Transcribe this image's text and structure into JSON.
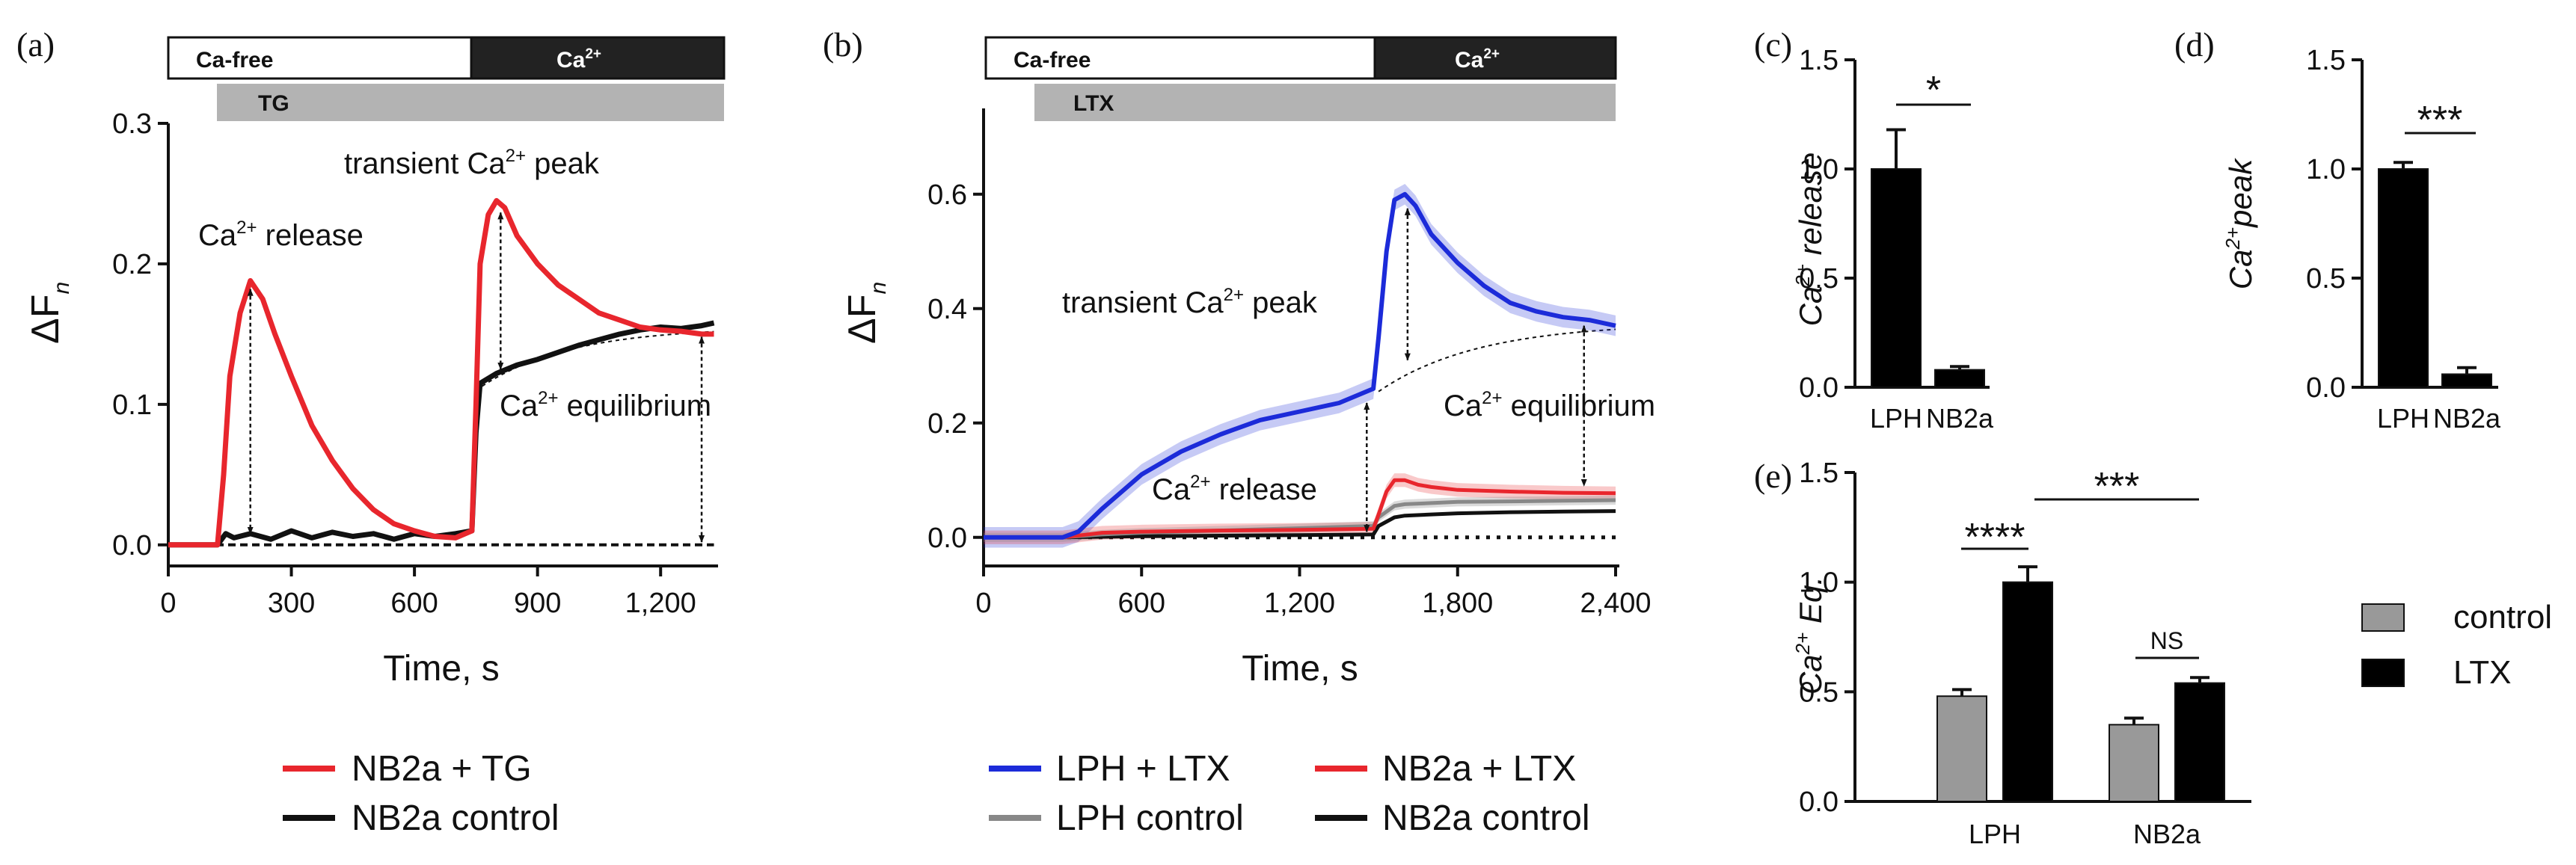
{
  "chart_data": [
    {
      "panel": "(a)",
      "type": "line",
      "ylabel_main": "ΔF",
      "ylabel_sub": "n",
      "xlabel": "Time, s",
      "xlim": [
        0,
        1340
      ],
      "ylim": [
        -0.015,
        0.3
      ],
      "xticks": [
        0,
        300,
        600,
        900,
        1200
      ],
      "xtick_labels": [
        "0",
        "300",
        "600",
        "900",
        "1,200"
      ],
      "yticks": [
        0.0,
        0.1,
        0.2,
        0.3
      ],
      "ytick_labels": [
        "0.0",
        "0.1",
        "0.2",
        "0.3"
      ],
      "bars": {
        "cafree": "Ca-free",
        "ca": "Ca",
        "ca_sup": "2+",
        "drug": "TG",
        "switch_time": 750,
        "drug_start": 130
      },
      "annotations": {
        "release": "Ca",
        "release_sup": "2+",
        "release_tail": " release",
        "peak": "transient Ca",
        "peak_sup": "2+",
        "peak_tail": " peak",
        "eq": "Ca",
        "eq_sup": "2+",
        "eq_tail": " equilibrium"
      },
      "series": [
        {
          "name": "NB2a + TG",
          "color": "#e8262d",
          "x": [
            0,
            120,
            135,
            150,
            175,
            200,
            230,
            260,
            300,
            350,
            400,
            450,
            500,
            550,
            600,
            650,
            700,
            740,
            750,
            760,
            780,
            800,
            820,
            850,
            900,
            950,
            1000,
            1050,
            1100,
            1150,
            1200,
            1250,
            1300,
            1330
          ],
          "y": [
            0,
            0,
            0.05,
            0.12,
            0.165,
            0.188,
            0.175,
            0.15,
            0.12,
            0.085,
            0.06,
            0.04,
            0.025,
            0.015,
            0.01,
            0.006,
            0.005,
            0.01,
            0.1,
            0.2,
            0.235,
            0.245,
            0.24,
            0.22,
            0.2,
            0.185,
            0.175,
            0.165,
            0.16,
            0.155,
            0.153,
            0.152,
            0.15,
            0.15
          ]
        },
        {
          "name": "NB2a control",
          "color": "#111111",
          "x": [
            0,
            120,
            140,
            160,
            200,
            250,
            300,
            350,
            400,
            450,
            500,
            550,
            600,
            650,
            700,
            740,
            750,
            760,
            800,
            850,
            900,
            950,
            1000,
            1050,
            1100,
            1150,
            1200,
            1250,
            1300,
            1330
          ],
          "y": [
            0,
            0,
            0.008,
            0.005,
            0.008,
            0.004,
            0.01,
            0.005,
            0.009,
            0.006,
            0.008,
            0.004,
            0.008,
            0.006,
            0.008,
            0.01,
            0.08,
            0.115,
            0.122,
            0.128,
            0.132,
            0.137,
            0.142,
            0.146,
            0.15,
            0.153,
            0.155,
            0.154,
            0.156,
            0.158
          ]
        }
      ]
    },
    {
      "panel": "(b)",
      "type": "line",
      "ylabel_main": "ΔF",
      "ylabel_sub": "n",
      "xlabel": "Time, s",
      "xlim": [
        0,
        2400
      ],
      "ylim": [
        -0.05,
        0.75
      ],
      "xticks": [
        0,
        600,
        1200,
        1800,
        2400
      ],
      "xtick_labels": [
        "0",
        "600",
        "1,200",
        "1,800",
        "2,400"
      ],
      "yticks": [
        0.0,
        0.2,
        0.4,
        0.6
      ],
      "ytick_labels": [
        "0.0",
        "0.2",
        "0.4",
        "0.6"
      ],
      "bars": {
        "cafree": "Ca-free",
        "ca": "Ca",
        "ca_sup": "2+",
        "drug": "LTX",
        "switch_time": 1500,
        "drug_start": 200
      },
      "annotations": {
        "release": "Ca",
        "release_sup": "2+",
        "release_tail": " release",
        "peak": "transient Ca",
        "peak_sup": "2+",
        "peak_tail": " peak",
        "eq": "Ca",
        "eq_sup": "2+",
        "eq_tail": " equilibrium"
      },
      "series": [
        {
          "name": "LPH + LTX",
          "color": "#1c2bd9",
          "x": [
            0,
            300,
            360,
            450,
            600,
            750,
            900,
            1050,
            1200,
            1350,
            1480,
            1500,
            1530,
            1560,
            1600,
            1640,
            1700,
            1800,
            1900,
            2000,
            2100,
            2200,
            2300,
            2400
          ],
          "y": [
            0,
            0,
            0.01,
            0.05,
            0.11,
            0.15,
            0.18,
            0.205,
            0.22,
            0.235,
            0.26,
            0.35,
            0.5,
            0.59,
            0.6,
            0.58,
            0.53,
            0.48,
            0.44,
            0.41,
            0.395,
            0.385,
            0.38,
            0.37
          ]
        },
        {
          "name": "NB2a + LTX",
          "color": "#e8262d",
          "x": [
            0,
            300,
            450,
            600,
            900,
            1200,
            1480,
            1500,
            1530,
            1560,
            1600,
            1650,
            1700,
            1800,
            2000,
            2200,
            2400
          ],
          "y": [
            0,
            0,
            0.008,
            0.01,
            0.012,
            0.013,
            0.015,
            0.04,
            0.08,
            0.1,
            0.1,
            0.092,
            0.088,
            0.083,
            0.08,
            0.078,
            0.077
          ]
        },
        {
          "name": "LPH control",
          "color": "#888888",
          "x": [
            0,
            300,
            450,
            600,
            900,
            1200,
            1480,
            1500,
            1560,
            1600,
            1700,
            1800,
            2000,
            2200,
            2400
          ],
          "y": [
            0,
            0,
            0.005,
            0.008,
            0.012,
            0.016,
            0.02,
            0.035,
            0.055,
            0.058,
            0.06,
            0.062,
            0.063,
            0.064,
            0.065
          ]
        },
        {
          "name": "NB2a control",
          "color": "#111111",
          "x": [
            0,
            300,
            600,
            900,
            1200,
            1480,
            1500,
            1560,
            1600,
            1700,
            1800,
            2000,
            2200,
            2400
          ],
          "y": [
            0,
            0,
            0.002,
            0.003,
            0.004,
            0.005,
            0.02,
            0.035,
            0.038,
            0.04,
            0.042,
            0.044,
            0.045,
            0.046
          ]
        }
      ]
    },
    {
      "panel": "(c)",
      "type": "bar",
      "ylabel_main": "Ca",
      "ylabel_sup": "2+",
      "ylabel_tail": " release",
      "categories": [
        "LPH",
        "NB2a"
      ],
      "values": [
        1.0,
        0.08
      ],
      "errors": [
        0.18,
        0.015
      ],
      "ylim": [
        0,
        1.5
      ],
      "yticks": [
        0.0,
        0.5,
        1.0,
        1.5
      ],
      "ytick_labels": [
        "0.0",
        "0.5",
        "1.0",
        "1.5"
      ],
      "significance": "*"
    },
    {
      "panel": "(d)",
      "type": "bar",
      "ylabel_main": "Ca",
      "ylabel_sup": "2+",
      "ylabel_tail": "peak",
      "categories": [
        "LPH",
        "NB2a"
      ],
      "values": [
        1.0,
        0.06
      ],
      "errors": [
        0.03,
        0.03
      ],
      "ylim": [
        0,
        1.5
      ],
      "yticks": [
        0.0,
        0.5,
        1.0,
        1.5
      ],
      "ytick_labels": [
        "0.0",
        "0.5",
        "1.0",
        "1.5"
      ],
      "significance": "***"
    },
    {
      "panel": "(e)",
      "type": "bar",
      "ylabel_main": "Ca",
      "ylabel_sup": "2+",
      "ylabel_tail": " Eq.",
      "categories": [
        "LPH",
        "NB2a"
      ],
      "series": [
        {
          "name": "control",
          "color": "#999999",
          "values": [
            0.48,
            0.35
          ],
          "errors": [
            0.03,
            0.03
          ]
        },
        {
          "name": "LTX",
          "color": "#000000",
          "values": [
            1.0,
            0.54
          ],
          "errors": [
            0.07,
            0.025
          ]
        }
      ],
      "ylim": [
        0,
        1.5
      ],
      "yticks": [
        0.0,
        0.5,
        1.0,
        1.5
      ],
      "ytick_labels": [
        "0.0",
        "0.5",
        "1.0",
        "1.5"
      ],
      "significance": {
        "within_lph": "****",
        "within_nb2a": "NS",
        "between": "***"
      }
    }
  ]
}
